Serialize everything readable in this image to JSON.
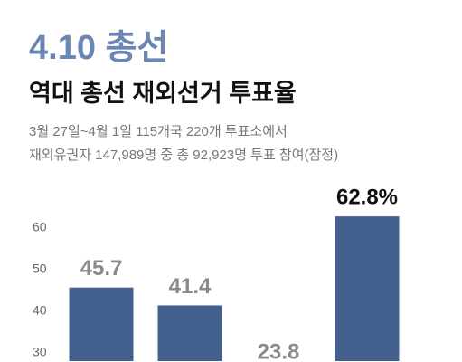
{
  "header": {
    "headline": "4.10 총선",
    "title": "역대 총선 재외선거 투표율",
    "description": [
      "3월 27일~4월 1일 115개국 220개 투표소에서",
      "재외유권자 147,989명 중 총 92,923명 투표 참여(잠정)"
    ]
  },
  "chart_data": {
    "type": "bar",
    "categories": [
      null,
      null,
      null,
      null
    ],
    "values": [
      45.7,
      41.4,
      23.8,
      62.8
    ],
    "value_labels": [
      "45.7",
      "41.4",
      "23.8",
      "62.8%"
    ],
    "color": "#44608f",
    "ylim": [
      28,
      65
    ],
    "yticks": [
      30,
      40,
      50,
      60
    ],
    "grid": false
  }
}
